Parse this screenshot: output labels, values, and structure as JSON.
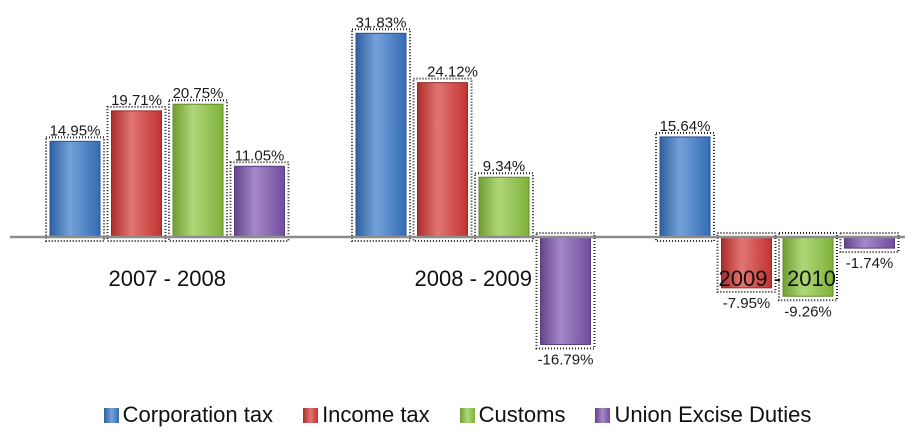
{
  "chart_data": {
    "type": "bar",
    "title": "",
    "xlabel": "",
    "ylabel": "",
    "categories": [
      "2007 - 2008",
      "2008 - 2009",
      "2009 - 2010"
    ],
    "ylim": [
      -20,
      34
    ],
    "grid": false,
    "legend_position": "bottom",
    "series": [
      {
        "name": "Corporation tax",
        "color": "#3a78c9",
        "values": [
          14.95,
          31.83,
          15.64
        ],
        "labels": [
          "14.95%",
          "31.83%",
          "15.64%"
        ]
      },
      {
        "name": "Income tax",
        "color": "#d63a35",
        "values": [
          19.71,
          24.12,
          -7.95
        ],
        "labels": [
          "19.71%",
          "24.12%",
          "-7.95%"
        ]
      },
      {
        "name": "Customs",
        "color": "#8dc63f",
        "values": [
          20.75,
          9.34,
          -9.26
        ],
        "labels": [
          "20.75%",
          "9.34%",
          "-9.26%"
        ]
      },
      {
        "name": "Union Excise Duties",
        "color": "#7e55b0",
        "values": [
          11.05,
          -16.79,
          -1.74
        ],
        "labels": [
          "11.05%",
          "-16.79%",
          "-1.74%"
        ]
      }
    ]
  }
}
